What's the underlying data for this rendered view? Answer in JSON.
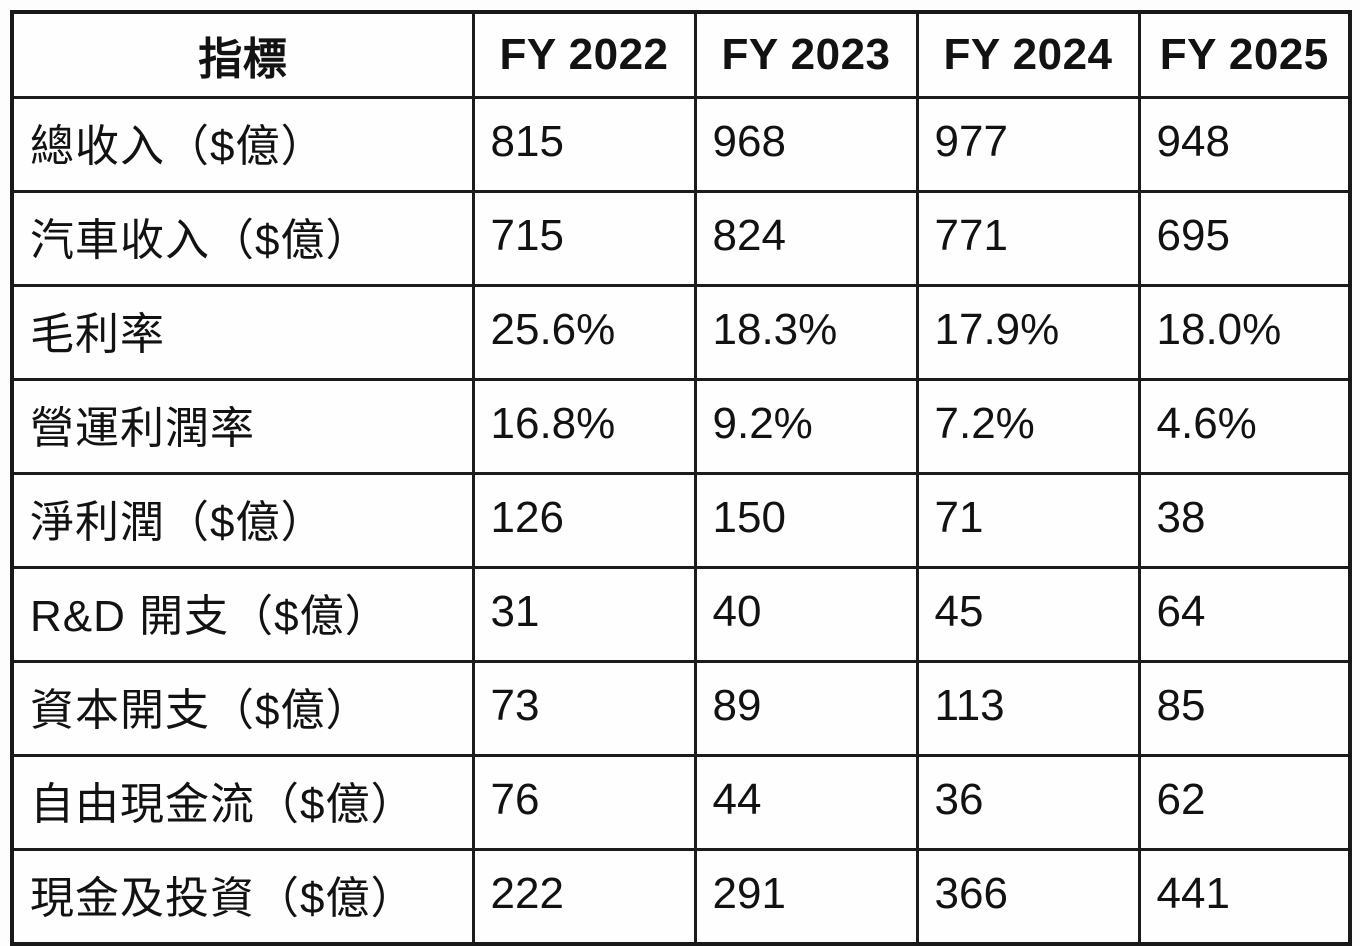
{
  "table": {
    "columns": [
      "指標",
      "FY 2022",
      "FY 2023",
      "FY 2024",
      "FY 2025"
    ],
    "rows": [
      {
        "label": "總收入（$億）",
        "values": [
          "815",
          "968",
          "977",
          "948"
        ]
      },
      {
        "label": "汽車收入（$億）",
        "values": [
          "715",
          "824",
          "771",
          "695"
        ]
      },
      {
        "label": "毛利率",
        "values": [
          "25.6%",
          "18.3%",
          "17.9%",
          "18.0%"
        ]
      },
      {
        "label": "營運利潤率",
        "values": [
          "16.8%",
          "9.2%",
          "7.2%",
          "4.6%"
        ]
      },
      {
        "label": "淨利潤（$億）",
        "values": [
          "126",
          "150",
          "71",
          "38"
        ]
      },
      {
        "label": "R&D 開支（$億）",
        "values": [
          "31",
          "40",
          "45",
          "64"
        ]
      },
      {
        "label": "資本開支（$億）",
        "values": [
          "73",
          "89",
          "113",
          "85"
        ]
      },
      {
        "label": "自由現金流（$億）",
        "values": [
          "76",
          "44",
          "36",
          "62"
        ]
      },
      {
        "label": "現金及投資（$億）",
        "values": [
          "222",
          "291",
          "366",
          "441"
        ]
      }
    ]
  },
  "chart_data": {
    "type": "table",
    "title": "",
    "columns": [
      "指標",
      "FY 2022",
      "FY 2023",
      "FY 2024",
      "FY 2025"
    ],
    "series": [
      {
        "name": "總收入（$億）",
        "values": [
          815,
          968,
          977,
          948
        ]
      },
      {
        "name": "汽車收入（$億）",
        "values": [
          715,
          824,
          771,
          695
        ]
      },
      {
        "name": "毛利率",
        "values": [
          "25.6%",
          "18.3%",
          "17.9%",
          "18.0%"
        ]
      },
      {
        "name": "營運利潤率",
        "values": [
          "16.8%",
          "9.2%",
          "7.2%",
          "4.6%"
        ]
      },
      {
        "name": "淨利潤（$億）",
        "values": [
          126,
          150,
          71,
          38
        ]
      },
      {
        "name": "R&D 開支（$億）",
        "values": [
          31,
          40,
          45,
          64
        ]
      },
      {
        "name": "資本開支（$億）",
        "values": [
          73,
          89,
          113,
          85
        ]
      },
      {
        "name": "自由現金流（$億）",
        "values": [
          76,
          44,
          36,
          62
        ]
      },
      {
        "name": "現金及投資（$億）",
        "values": [
          222,
          291,
          366,
          441
        ]
      }
    ],
    "colors": {
      "text": "#121212",
      "border": "#1c1c1c",
      "background": "#fefefe"
    }
  }
}
